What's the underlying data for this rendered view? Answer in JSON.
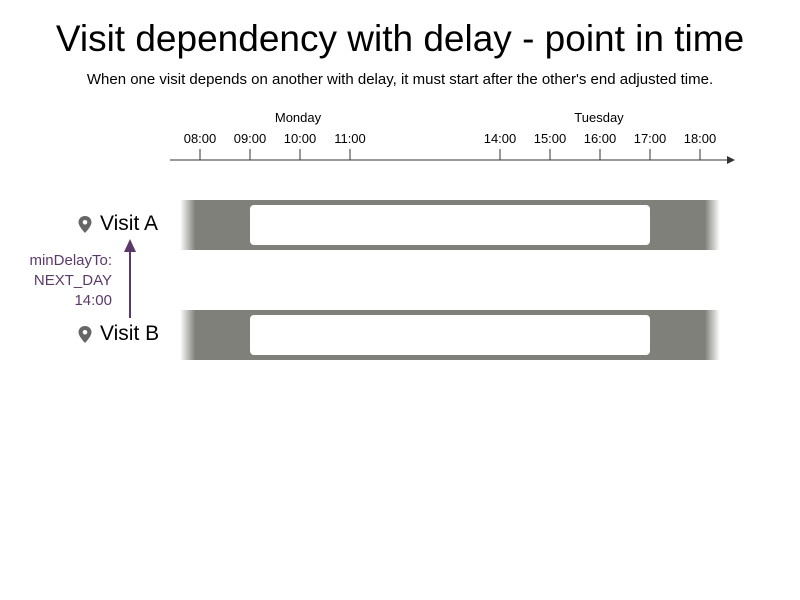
{
  "title": "Visit dependency with delay - point in time",
  "subtitle": "When one visit depends on another with delay, it must start after the other's end adjusted time.",
  "timeline": {
    "days": [
      "Monday",
      "Tuesday"
    ],
    "ticks": [
      "08:00",
      "09:00",
      "10:00",
      "11:00",
      "14:00",
      "15:00",
      "16:00",
      "17:00",
      "18:00"
    ]
  },
  "visits": [
    {
      "label": "Visit A",
      "icon": "location-pin-icon"
    },
    {
      "label": "Visit B",
      "icon": "location-pin-icon"
    }
  ],
  "dependency": {
    "line1": "minDelayTo:",
    "line2": "NEXT_DAY",
    "line3": "14:00"
  },
  "colors": {
    "band": "#80807b",
    "slot": "#ffffff",
    "arrow": "#5b3a6b",
    "axis": "#333333",
    "pin": "#666666"
  }
}
